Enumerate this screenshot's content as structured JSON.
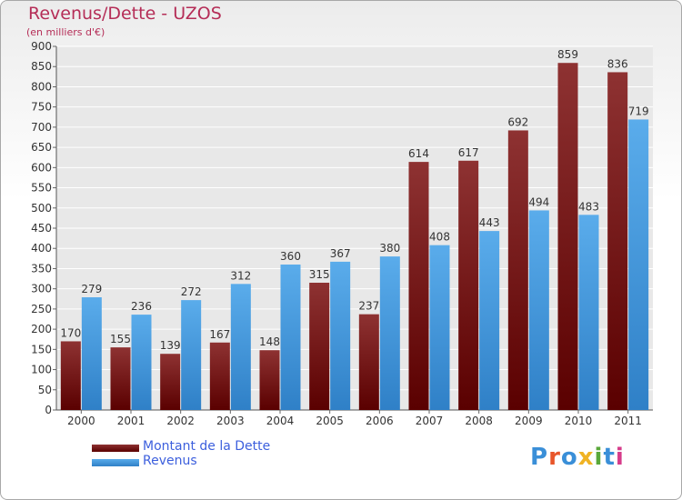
{
  "chart_data": {
    "type": "bar",
    "title": "Revenus/Dette - UZOS",
    "subtitle": "(en milliers d'€)",
    "categories": [
      "2000",
      "2001",
      "2002",
      "2003",
      "2004",
      "2005",
      "2006",
      "2007",
      "2008",
      "2009",
      "2010",
      "2011"
    ],
    "series": [
      {
        "name": "Montant de la Dette",
        "color": "#7a1414",
        "values": [
          170,
          155,
          139,
          167,
          148,
          315,
          237,
          614,
          617,
          692,
          859,
          836
        ]
      },
      {
        "name": "Revenus",
        "color": "#3f9ee6",
        "values": [
          279,
          236,
          272,
          312,
          360,
          367,
          380,
          408,
          443,
          494,
          483,
          719
        ]
      }
    ],
    "ylim": [
      0,
      900
    ],
    "yticks": [
      0,
      50,
      100,
      150,
      200,
      250,
      300,
      350,
      400,
      450,
      500,
      550,
      600,
      650,
      700,
      750,
      800,
      850,
      900
    ],
    "grid": true,
    "legend_position": "bottom-left"
  },
  "logo": {
    "text": "Proxiti",
    "colors": [
      "#3a8fd8",
      "#e8562a",
      "#3a8fd8",
      "#f0b323",
      "#5aa83a",
      "#3a8fd8",
      "#d63b8a"
    ]
  }
}
